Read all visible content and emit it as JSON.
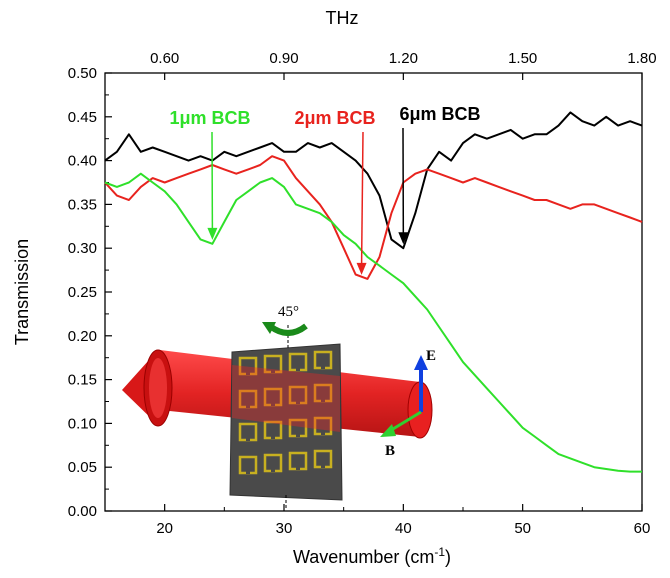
{
  "chart_data": {
    "type": "line",
    "title": "",
    "xlabel": "Wavenumber  (cm",
    "xlabel_sup": "-1",
    "xlabel_close": ")",
    "ylabel": "Transmission",
    "top_axis_label": "THz",
    "xlim": [
      15,
      60
    ],
    "ylim": [
      0.0,
      0.5
    ],
    "grid": false,
    "x_ticks": [
      20,
      30,
      40,
      50,
      60
    ],
    "y_ticks": [
      0.0,
      0.05,
      0.1,
      0.15,
      0.2,
      0.25,
      0.3,
      0.35,
      0.4,
      0.45,
      0.5
    ],
    "top_ticks": [
      "0.60",
      "0.90",
      "1.20",
      "1.50",
      "1.80"
    ],
    "top_tick_positions": [
      20,
      30,
      40,
      50,
      60
    ],
    "series": [
      {
        "name": "6μm BCB",
        "color": "#000000",
        "x": [
          15,
          16,
          17,
          18,
          19,
          20,
          21,
          22,
          23,
          24,
          25,
          26,
          27,
          28,
          29,
          30,
          31,
          32,
          33,
          34,
          35,
          36,
          37,
          38,
          39,
          40,
          41,
          42,
          43,
          44,
          45,
          46,
          47,
          48,
          49,
          50,
          51,
          52,
          53,
          54,
          55,
          56,
          57,
          58,
          59,
          60
        ],
        "y": [
          0.4,
          0.41,
          0.43,
          0.41,
          0.415,
          0.41,
          0.405,
          0.4,
          0.405,
          0.4,
          0.41,
          0.405,
          0.41,
          0.415,
          0.42,
          0.41,
          0.41,
          0.42,
          0.415,
          0.42,
          0.41,
          0.4,
          0.385,
          0.36,
          0.31,
          0.3,
          0.34,
          0.39,
          0.41,
          0.4,
          0.42,
          0.43,
          0.425,
          0.43,
          0.435,
          0.425,
          0.43,
          0.43,
          0.44,
          0.455,
          0.445,
          0.44,
          0.45,
          0.44,
          0.445,
          0.44
        ]
      },
      {
        "name": "2μm BCB",
        "color": "#e8231e",
        "x": [
          15,
          16,
          17,
          18,
          19,
          20,
          21,
          22,
          23,
          24,
          25,
          26,
          27,
          28,
          29,
          30,
          31,
          32,
          33,
          34,
          35,
          36,
          37,
          38,
          39,
          40,
          41,
          42,
          43,
          44,
          45,
          46,
          47,
          48,
          49,
          50,
          51,
          52,
          53,
          54,
          55,
          56,
          57,
          58,
          59,
          60
        ],
        "y": [
          0.375,
          0.36,
          0.355,
          0.37,
          0.38,
          0.375,
          0.38,
          0.385,
          0.39,
          0.395,
          0.39,
          0.385,
          0.39,
          0.395,
          0.405,
          0.4,
          0.38,
          0.365,
          0.35,
          0.33,
          0.3,
          0.27,
          0.265,
          0.29,
          0.34,
          0.375,
          0.385,
          0.39,
          0.385,
          0.38,
          0.375,
          0.38,
          0.375,
          0.37,
          0.365,
          0.36,
          0.355,
          0.355,
          0.35,
          0.345,
          0.35,
          0.35,
          0.345,
          0.34,
          0.335,
          0.33
        ]
      },
      {
        "name": "1μm BCB",
        "color": "#2fe02a",
        "x": [
          15,
          16,
          17,
          18,
          19,
          20,
          21,
          22,
          23,
          24,
          25,
          26,
          27,
          28,
          29,
          30,
          31,
          32,
          33,
          34,
          35,
          36,
          37,
          38,
          39,
          40,
          41,
          42,
          43,
          44,
          45,
          46,
          47,
          48,
          49,
          50,
          51,
          52,
          53,
          54,
          55,
          56,
          57,
          58,
          59,
          60
        ],
        "y": [
          0.375,
          0.37,
          0.375,
          0.385,
          0.375,
          0.365,
          0.35,
          0.33,
          0.31,
          0.305,
          0.33,
          0.355,
          0.365,
          0.375,
          0.38,
          0.37,
          0.35,
          0.345,
          0.34,
          0.33,
          0.315,
          0.305,
          0.29,
          0.28,
          0.27,
          0.26,
          0.245,
          0.23,
          0.21,
          0.19,
          0.17,
          0.155,
          0.14,
          0.125,
          0.11,
          0.095,
          0.085,
          0.075,
          0.065,
          0.06,
          0.055,
          0.05,
          0.048,
          0.046,
          0.045,
          0.045
        ]
      }
    ],
    "annotations": [
      {
        "text": "1μm BCB",
        "color": "#2fe02a",
        "arrow_to": [
          24,
          0.305
        ]
      },
      {
        "text": "2μm BCB",
        "color": "#e8231e",
        "arrow_to": [
          36.5,
          0.265
        ]
      },
      {
        "text": "6μm BCB",
        "color": "#000000",
        "arrow_to": [
          40,
          0.3
        ]
      }
    ],
    "inset": {
      "angle_label": "45°",
      "e_label": "E",
      "b_label": "B"
    }
  }
}
